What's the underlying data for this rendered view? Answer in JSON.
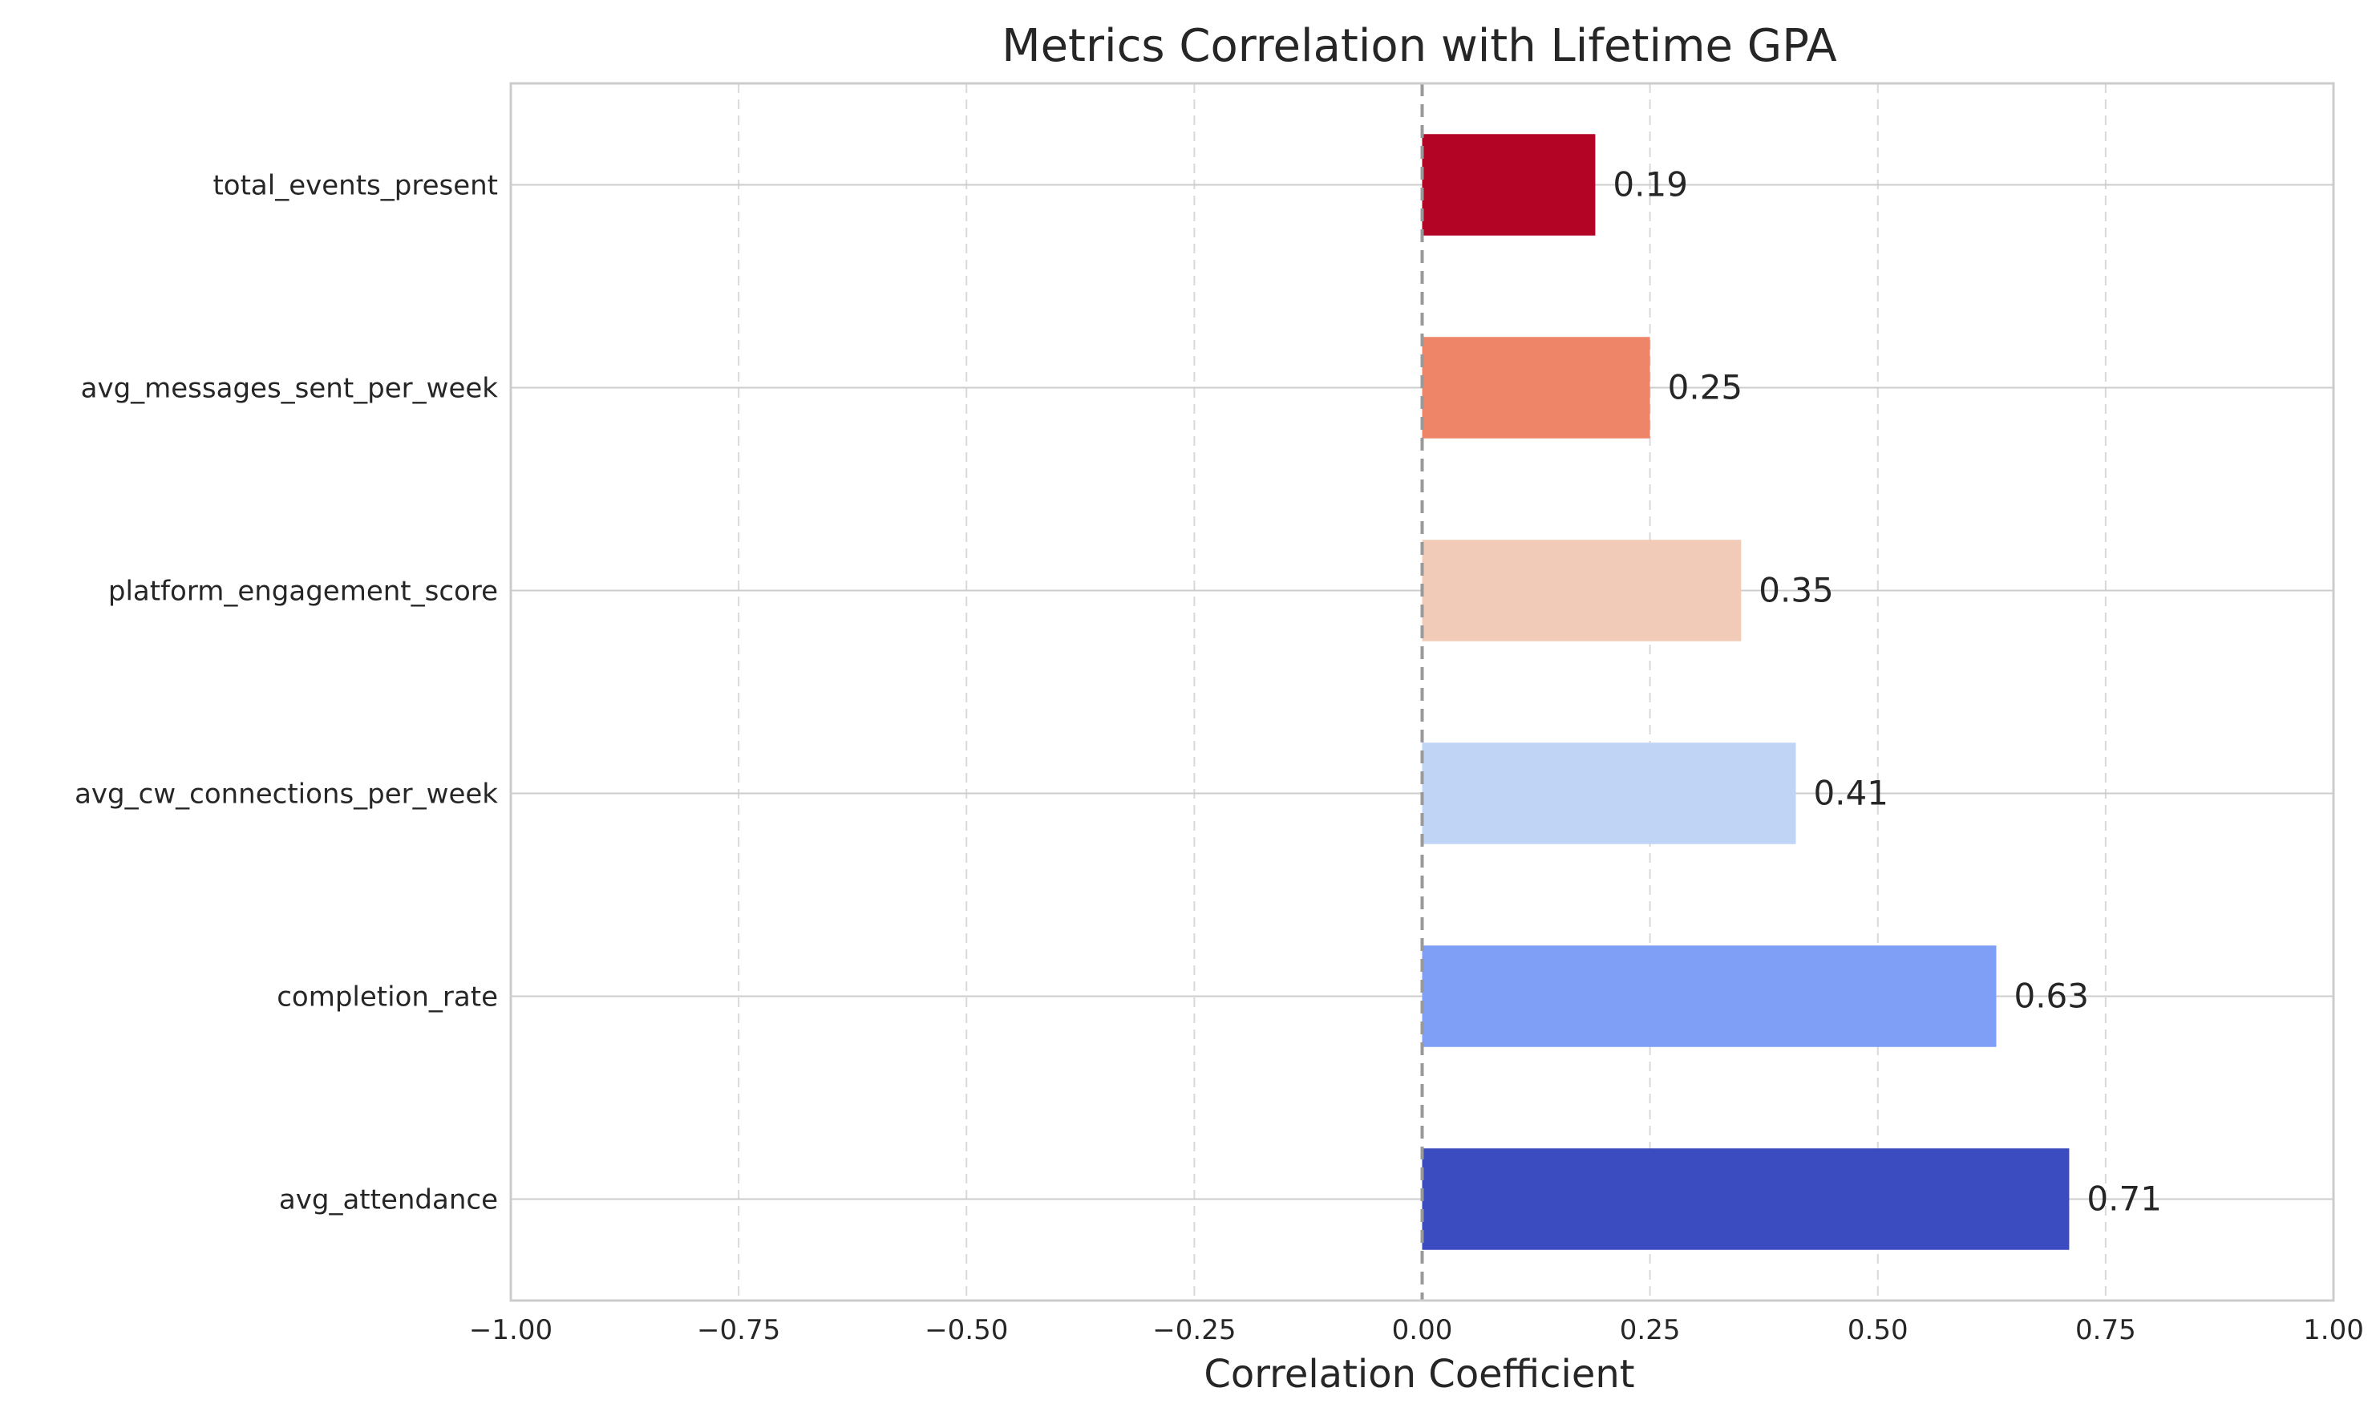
{
  "chart_data": {
    "type": "bar",
    "orientation": "horizontal",
    "title": "Metrics Correlation with Lifetime GPA",
    "xlabel": "Correlation Coefficient",
    "ylabel": "",
    "xlim": [
      -1.0,
      1.0
    ],
    "xticks": [
      -1.0,
      -0.75,
      -0.5,
      -0.25,
      0.0,
      0.25,
      0.5,
      0.75,
      1.0
    ],
    "xtick_labels": [
      "−1.00",
      "−0.75",
      "−0.50",
      "−0.25",
      "0.00",
      "0.25",
      "0.50",
      "0.75",
      "1.00"
    ],
    "categories": [
      "total_events_present",
      "avg_messages_sent_per_week",
      "platform_engagement_score",
      "avg_cw_connections_per_week",
      "completion_rate",
      "avg_attendance"
    ],
    "values": [
      0.19,
      0.25,
      0.35,
      0.41,
      0.63,
      0.71
    ],
    "value_labels": [
      "0.19",
      "0.25",
      "0.35",
      "0.41",
      "0.63",
      "0.71"
    ],
    "bar_colors": [
      "#b40426",
      "#ee8468",
      "#f1cbb7",
      "#c0d4f5",
      "#7f9ff7",
      "#3b4cc0"
    ],
    "grid": true,
    "zero_line": "dashed",
    "legend": "none"
  }
}
